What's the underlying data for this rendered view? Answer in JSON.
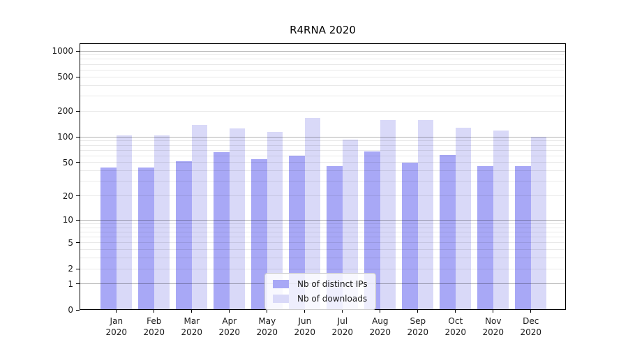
{
  "chart_data": {
    "type": "bar",
    "title": "R4RNA 2020",
    "categories": [
      "Jan 2020",
      "Feb 2020",
      "Mar 2020",
      "Apr 2020",
      "May 2020",
      "Jun 2020",
      "Jul 2020",
      "Aug 2020",
      "Sep 2020",
      "Oct 2020",
      "Nov 2020",
      "Dec 2020"
    ],
    "series": [
      {
        "name": "Nb of distinct IPs",
        "color": "#a8a8f6",
        "values": [
          44,
          44,
          52,
          66,
          55,
          60,
          45,
          67,
          50,
          61,
          45,
          45
        ]
      },
      {
        "name": "Nb of downloads",
        "color": "#d9d9f8",
        "values": [
          104,
          105,
          138,
          126,
          114,
          167,
          93,
          157,
          157,
          128,
          118,
          100
        ]
      }
    ],
    "xlabel": "",
    "ylabel": "",
    "yscale": "log10(1+x)",
    "yticks": [
      0,
      1,
      2,
      5,
      10,
      20,
      50,
      100,
      200,
      500,
      1000
    ],
    "ylim": [
      0,
      1228
    ],
    "grid": "horizontal, minor log lines on, major lines at powers of 10",
    "legend_position": "lower center",
    "colors": {
      "distinct_ips": "#a8a8f6",
      "downloads": "#d9d9f8",
      "grid_minor": "#e9e9e9",
      "grid_major": "#b0b0b0",
      "axis": "#000000",
      "background": "#ffffff"
    }
  }
}
